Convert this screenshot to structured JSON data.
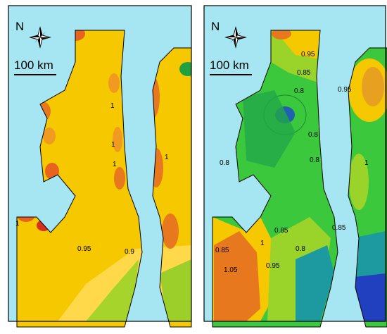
{
  "panels": [
    {
      "north_label": "N",
      "scale_label": "100 km",
      "contour_labels": [
        "1",
        "1",
        "1",
        "1",
        "1",
        "0.95",
        "0.9"
      ]
    },
    {
      "north_label": "N",
      "scale_label": "100 km",
      "contour_labels": [
        "0.95",
        "0.85",
        "0.8",
        "0.95",
        "0.8",
        "0.8",
        "0.8",
        "0.85",
        "0.85",
        "0.85",
        "1.05",
        "1",
        "0.95",
        "0.8",
        "1"
      ]
    }
  ]
}
